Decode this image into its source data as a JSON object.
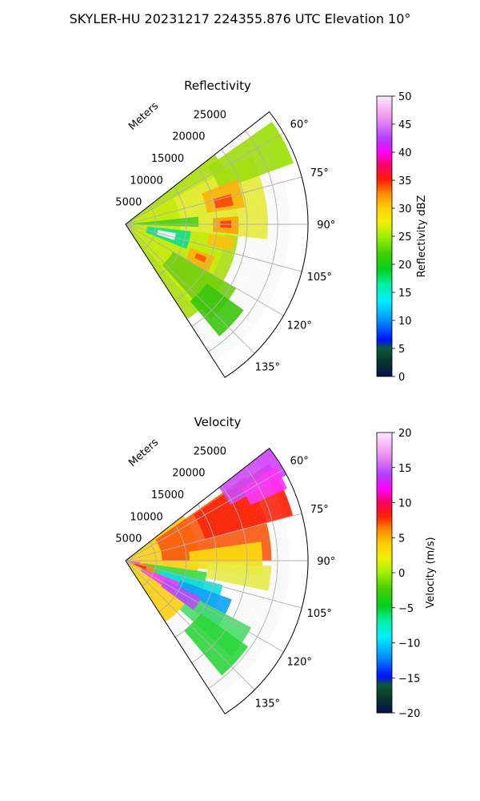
{
  "figure": {
    "suptitle": "SKYLER-HU  20231217  224355.876 UTC Elevation 10°"
  },
  "chart_data": [
    {
      "type": "heatmap",
      "title": "Reflectivity",
      "projection": "polar (sector)",
      "radial_label": "Meters",
      "radial_ticks": [
        "5000",
        "10000",
        "15000",
        "20000",
        "25000"
      ],
      "radial_range": [
        0,
        30000
      ],
      "azimuth_ticks": [
        "60°",
        "75°",
        "90°",
        "105°",
        "120°",
        "135°"
      ],
      "azimuth_range_deg": [
        52,
        147
      ],
      "grid": true,
      "colorbar": {
        "label": "Reflectivity dBZ",
        "range": [
          0,
          50
        ],
        "ticks": [
          "0",
          "5",
          "10",
          "15",
          "20",
          "25",
          "30",
          "35",
          "40",
          "45",
          "50"
        ],
        "placement": "right"
      },
      "field": "reflectivity (dBZ), mostly 18–30 dBZ with embedded cores of 32–38 dBZ near 15000–20000 m range"
    },
    {
      "type": "heatmap",
      "title": "Velocity",
      "projection": "polar (sector)",
      "radial_label": "Meters",
      "radial_ticks": [
        "5000",
        "10000",
        "15000",
        "20000",
        "25000"
      ],
      "radial_range": [
        0,
        30000
      ],
      "azimuth_ticks": [
        "60°",
        "75°",
        "90°",
        "105°",
        "120°",
        "135°"
      ],
      "azimuth_range_deg": [
        52,
        147
      ],
      "grid": true,
      "colorbar": {
        "label": "Velocity (m/s)",
        "range": [
          -20,
          20
        ],
        "ticks": [
          "−20",
          "−15",
          "−10",
          "−5",
          "0",
          "5",
          "10",
          "15",
          "20"
        ],
        "placement": "right"
      },
      "field": "radial velocity (m/s), +8 to +18 m/s toward 60°–75° at long range, near 0 around 90°, −5 to −12 m/s toward 105°–135°"
    }
  ]
}
